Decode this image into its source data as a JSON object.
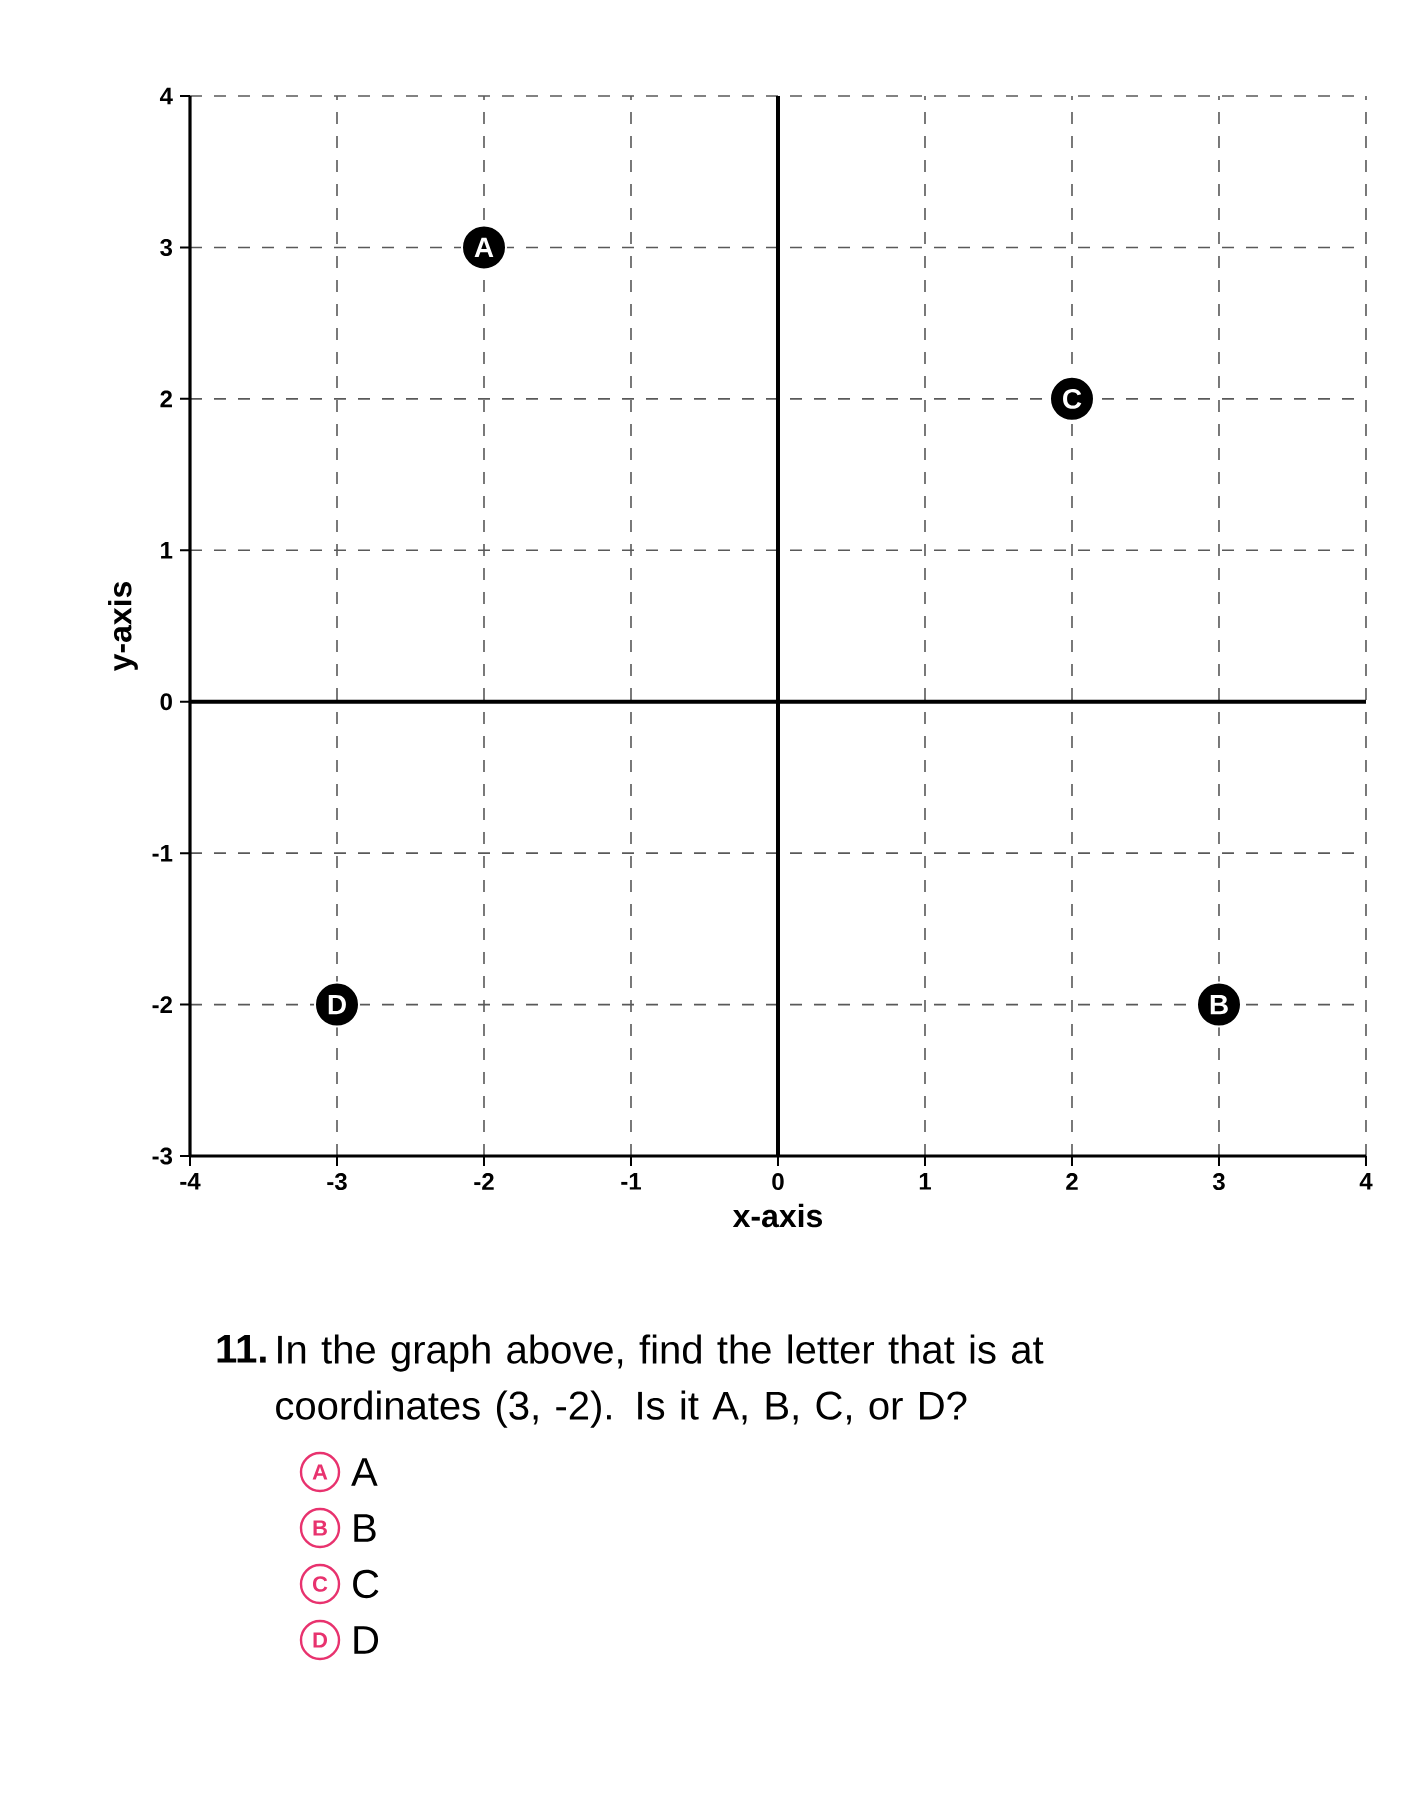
{
  "chart_data": {
    "type": "scatter",
    "xlabel": "x-axis",
    "ylabel": "y-axis",
    "series": [
      {
        "name": "A",
        "color": "#000000",
        "x": [
          -2
        ],
        "values": [
          3
        ]
      },
      {
        "name": "B",
        "color": "#000000",
        "x": [
          3
        ],
        "values": [
          -2
        ]
      },
      {
        "name": "C",
        "color": "#000000",
        "x": [
          2
        ],
        "values": [
          2
        ]
      },
      {
        "name": "D",
        "color": "#000000",
        "x": [
          -3
        ],
        "values": [
          -2
        ]
      }
    ],
    "xlim": [
      -4,
      4
    ],
    "ylim": [
      -3,
      4
    ],
    "xticks": [
      -4,
      -3,
      -2,
      -1,
      0,
      1,
      2,
      3,
      4
    ],
    "yticks": [
      -3,
      -2,
      -1,
      0,
      1,
      2,
      3,
      4
    ],
    "grid": true,
    "marker": "circle",
    "annotations": [
      "11.",
      "In the graph above, find the letter that is at coordinates (3, -2). Is it A, B, C, or D?",
      "A",
      "A",
      "B",
      "B",
      "C",
      "C",
      "D",
      "D"
    ]
  }
}
